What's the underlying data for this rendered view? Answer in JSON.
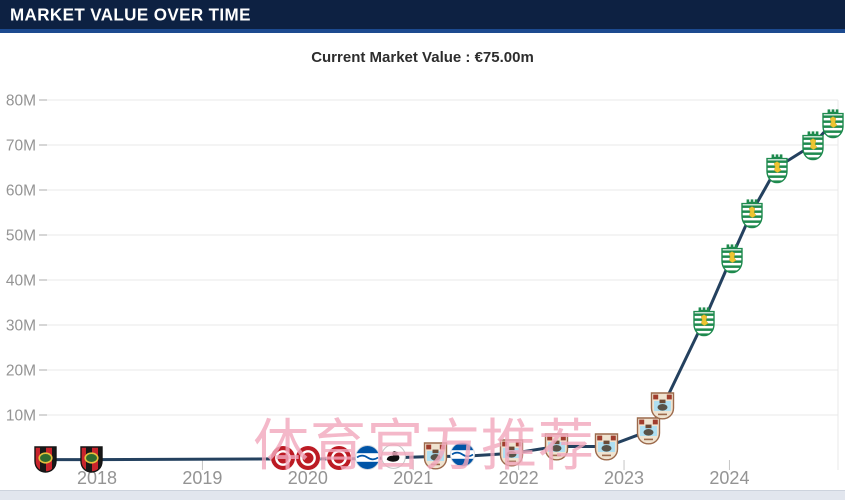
{
  "header": {
    "title": "MARKET VALUE OVER TIME"
  },
  "chart_data": {
    "type": "line",
    "title": "Current Market Value : €75.00m",
    "axis": {
      "x_min": 2017.44,
      "x_max": 2025.03,
      "y_min": 0,
      "y_max": 80
    },
    "grid": true,
    "legend": "none",
    "y_ticks": [
      {
        "value": 10,
        "label": "10M"
      },
      {
        "value": 20,
        "label": "20M"
      },
      {
        "value": 30,
        "label": "30M"
      },
      {
        "value": 40,
        "label": "40M"
      },
      {
        "value": 50,
        "label": "50M"
      },
      {
        "value": 60,
        "label": "60M"
      },
      {
        "value": 70,
        "label": "70M"
      },
      {
        "value": 80,
        "label": "80M"
      }
    ],
    "x_ticks": [
      {
        "value": 2018,
        "label": "2018"
      },
      {
        "value": 2019,
        "label": "2019"
      },
      {
        "value": 2020,
        "label": "2020"
      },
      {
        "value": 2021,
        "label": "2021"
      },
      {
        "value": 2022,
        "label": "2022"
      },
      {
        "value": 2023,
        "label": "2023"
      },
      {
        "value": 2024,
        "label": "2024"
      }
    ],
    "series": [
      {
        "name": "market-value-eur-m",
        "color": "#24415f",
        "points": [
          {
            "year_frac": 2017.53,
            "value_m": 0.1,
            "club": "brommapojkarna"
          },
          {
            "year_frac": 2017.96,
            "value_m": 0.1,
            "club": "brommapojkarna"
          },
          {
            "year_frac": 2019.76,
            "value_m": 0.25,
            "club": "st-pauli"
          },
          {
            "year_frac": 2020.0,
            "value_m": 0.25,
            "club": "st-pauli"
          },
          {
            "year_frac": 2020.3,
            "value_m": 0.25,
            "club": "st-pauli"
          },
          {
            "year_frac": 2020.57,
            "value_m": 0.3,
            "club": "brighton"
          },
          {
            "year_frac": 2020.82,
            "value_m": 0.5,
            "club": "swansea"
          },
          {
            "year_frac": 2021.22,
            "value_m": 0.8,
            "club": "coventry"
          },
          {
            "year_frac": 2021.47,
            "value_m": 0.8,
            "club": "brighton"
          },
          {
            "year_frac": 2021.94,
            "value_m": 1.5,
            "club": "coventry"
          },
          {
            "year_frac": 2022.36,
            "value_m": 3,
            "club": "coventry"
          },
          {
            "year_frac": 2022.84,
            "value_m": 3,
            "club": "coventry"
          },
          {
            "year_frac": 2023.24,
            "value_m": 6.5,
            "club": "coventry"
          },
          {
            "year_frac": 2023.37,
            "value_m": 12,
            "club": "coventry"
          },
          {
            "year_frac": 2023.76,
            "value_m": 31,
            "club": "sporting-cp"
          },
          {
            "year_frac": 2024.02,
            "value_m": 45,
            "club": "sporting-cp"
          },
          {
            "year_frac": 2024.21,
            "value_m": 55,
            "club": "sporting-cp"
          },
          {
            "year_frac": 2024.45,
            "value_m": 65,
            "club": "sporting-cp"
          },
          {
            "year_frac": 2024.79,
            "value_m": 70,
            "club": "sporting-cp"
          },
          {
            "year_frac": 2024.98,
            "value_m": 75,
            "club": "sporting-cp"
          }
        ]
      }
    ],
    "clubs": {
      "brommapojkarna": "IF Brommapojkarna crest",
      "st-pauli": "FC St. Pauli crest",
      "brighton": "Brighton & Hove Albion crest",
      "swansea": "Swansea City crest",
      "coventry": "Coventry City crest",
      "sporting-cp": "Sporting CP crest"
    }
  },
  "watermark": {
    "text": "体育官方推荐",
    "color": "rgba(242,168,189,0.82)"
  },
  "colors": {
    "header_bg": "#0d2142",
    "header_accent": "#1c4a8f",
    "grid": "#e8e8e8",
    "tick": "#c4c4c4",
    "axis_label": "#949494",
    "line": "#24415f",
    "footer_bg": "#e2e6ee",
    "title_text": "#2d2d2d"
  }
}
